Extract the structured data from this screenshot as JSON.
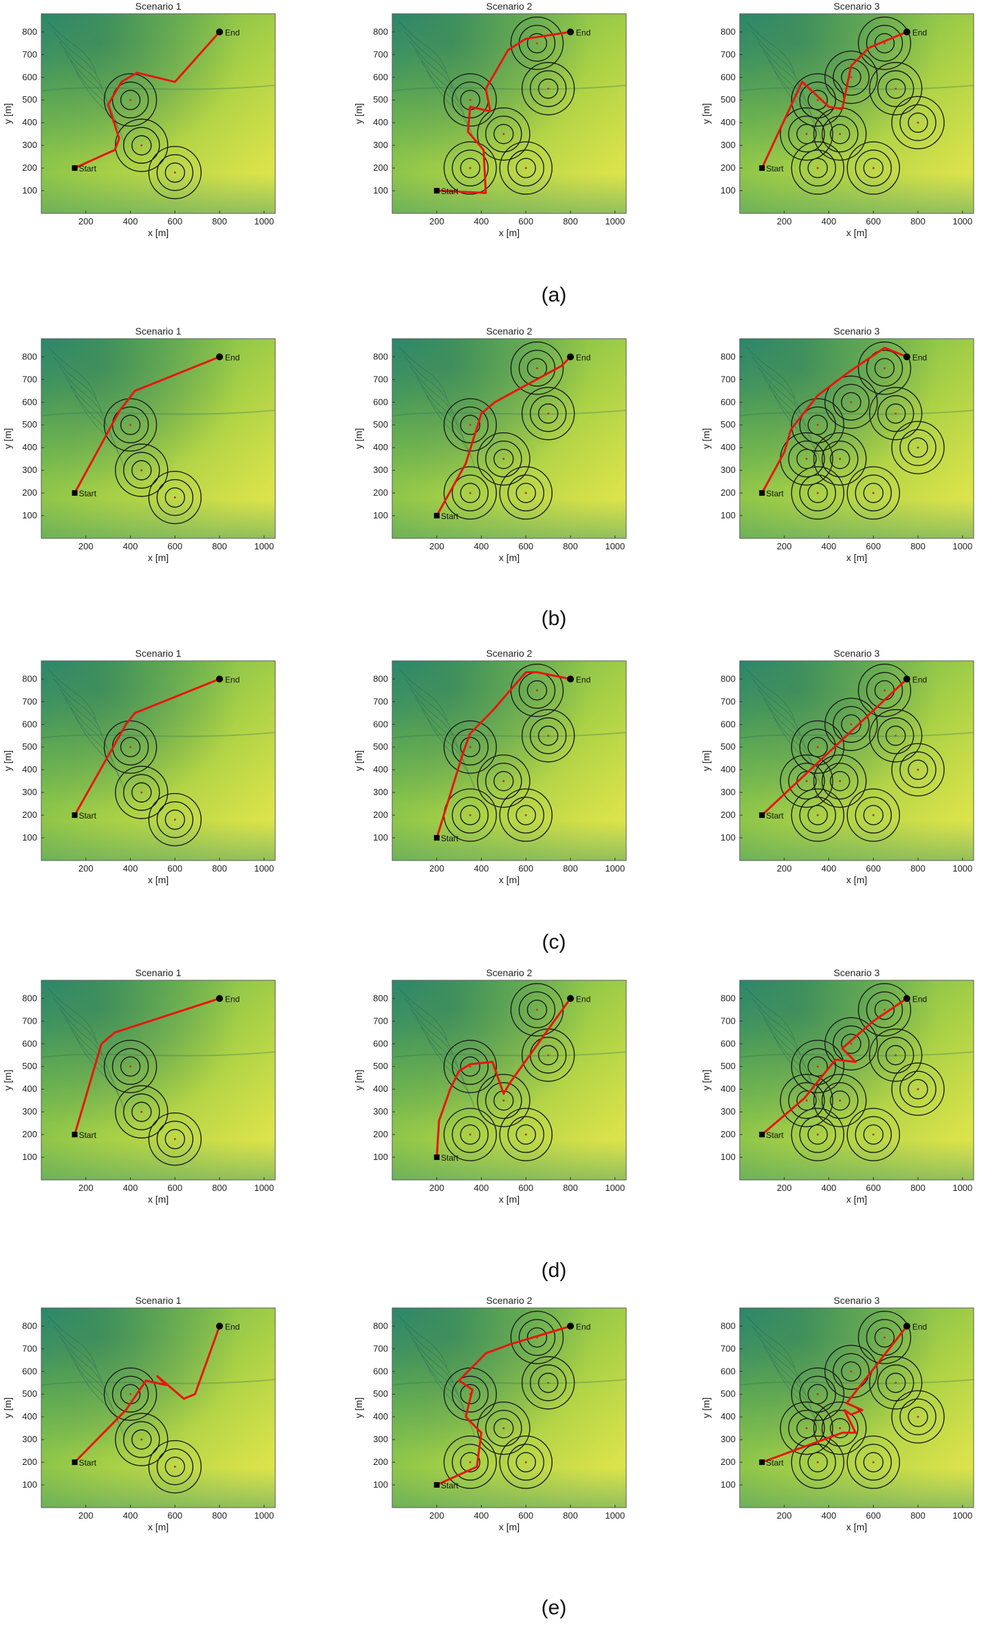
{
  "row_labels": [
    "(a)",
    "(b)",
    "(c)",
    "(d)",
    "(e)"
  ],
  "axes": {
    "xlabel": "x [m]",
    "ylabel": "y [m]",
    "xlim": [
      0,
      1050
    ],
    "ylim": [
      0,
      880
    ],
    "xticks": [
      200,
      400,
      600,
      800,
      1000
    ],
    "yticks": [
      100,
      200,
      300,
      400,
      500,
      600,
      700,
      800
    ]
  },
  "markers": {
    "start_label": "Start",
    "end_label": "End"
  },
  "colors": {
    "path": "#e8160e",
    "threat": "#1a1a1a",
    "marker": "#000000",
    "terrain_low": "#dfe64a",
    "terrain_mid": "#9fcd45",
    "terrain_high": "#3a9a6a"
  },
  "scenarios": [
    {
      "title": "Scenario 1",
      "start": [
        150,
        200
      ],
      "end": [
        800,
        800
      ],
      "threats": [
        [
          400,
          500
        ],
        [
          450,
          300
        ],
        [
          600,
          180
        ]
      ]
    },
    {
      "title": "Scenario 2",
      "start": [
        200,
        100
      ],
      "end": [
        800,
        800
      ],
      "threats": [
        [
          350,
          500
        ],
        [
          500,
          350
        ],
        [
          650,
          750
        ],
        [
          700,
          550
        ],
        [
          350,
          200
        ],
        [
          600,
          200
        ]
      ]
    },
    {
      "title": "Scenario 3",
      "start": [
        100,
        200
      ],
      "end": [
        750,
        800
      ],
      "threats": [
        [
          350,
          500
        ],
        [
          500,
          600
        ],
        [
          650,
          750
        ],
        [
          700,
          550
        ],
        [
          800,
          400
        ],
        [
          300,
          350
        ],
        [
          450,
          350
        ],
        [
          350,
          200
        ],
        [
          600,
          200
        ]
      ]
    }
  ],
  "chart_data": [
    {
      "type": "line",
      "row": "(a)",
      "title": "Scenario 1",
      "xlabel": "x [m]",
      "ylabel": "y [m]",
      "series": [
        {
          "x": [
            150,
            330,
            350,
            300,
            360,
            430,
            600,
            800
          ],
          "y": [
            200,
            280,
            330,
            480,
            580,
            620,
            580,
            800
          ]
        }
      ]
    },
    {
      "type": "line",
      "row": "(a)",
      "title": "Scenario 2",
      "xlabel": "x [m]",
      "ylabel": "y [m]",
      "series": [
        {
          "x": [
            200,
            420,
            410,
            340,
            350,
            440,
            420,
            520,
            600,
            800
          ],
          "y": [
            100,
            90,
            280,
            360,
            470,
            450,
            550,
            720,
            770,
            800
          ]
        }
      ]
    },
    {
      "type": "line",
      "row": "(a)",
      "title": "Scenario 3",
      "xlabel": "x [m]",
      "ylabel": "y [m]",
      "series": [
        {
          "x": [
            100,
            280,
            400,
            460,
            500,
            580,
            750
          ],
          "y": [
            200,
            580,
            470,
            460,
            650,
            730,
            800
          ]
        }
      ]
    },
    {
      "type": "line",
      "row": "(b)",
      "title": "Scenario 1",
      "xlabel": "x [m]",
      "ylabel": "y [m]",
      "series": [
        {
          "x": [
            150,
            350,
            420,
            800
          ],
          "y": [
            200,
            560,
            650,
            800
          ]
        }
      ]
    },
    {
      "type": "line",
      "row": "(b)",
      "title": "Scenario 2",
      "xlabel": "x [m]",
      "ylabel": "y [m]",
      "series": [
        {
          "x": [
            200,
            330,
            400,
            460,
            760,
            800
          ],
          "y": [
            100,
            330,
            550,
            600,
            760,
            800
          ]
        }
      ]
    },
    {
      "type": "line",
      "row": "(b)",
      "title": "Scenario 3",
      "xlabel": "x [m]",
      "ylabel": "y [m]",
      "series": [
        {
          "x": [
            100,
            200,
            230,
            350,
            500,
            650,
            750
          ],
          "y": [
            200,
            380,
            480,
            630,
            740,
            840,
            800
          ]
        }
      ]
    },
    {
      "type": "line",
      "row": "(c)",
      "title": "Scenario 1",
      "xlabel": "x [m]",
      "ylabel": "y [m]",
      "series": [
        {
          "x": [
            150,
            380,
            420,
            800
          ],
          "y": [
            200,
            600,
            650,
            800
          ]
        }
      ]
    },
    {
      "type": "line",
      "row": "(c)",
      "title": "Scenario 2",
      "xlabel": "x [m]",
      "ylabel": "y [m]",
      "series": [
        {
          "x": [
            200,
            320,
            350,
            450,
            600,
            650,
            800
          ],
          "y": [
            100,
            480,
            560,
            660,
            830,
            830,
            800
          ]
        }
      ]
    },
    {
      "type": "line",
      "row": "(c)",
      "title": "Scenario 3",
      "xlabel": "x [m]",
      "ylabel": "y [m]",
      "series": [
        {
          "x": [
            100,
            750
          ],
          "y": [
            200,
            800
          ]
        }
      ]
    },
    {
      "type": "line",
      "row": "(d)",
      "title": "Scenario 1",
      "xlabel": "x [m]",
      "ylabel": "y [m]",
      "series": [
        {
          "x": [
            150,
            270,
            330,
            800
          ],
          "y": [
            200,
            600,
            650,
            800
          ]
        }
      ]
    },
    {
      "type": "line",
      "row": "(d)",
      "title": "Scenario 2",
      "xlabel": "x [m]",
      "ylabel": "y [m]",
      "series": [
        {
          "x": [
            200,
            210,
            260,
            300,
            350,
            450,
            500,
            530,
            800
          ],
          "y": [
            100,
            260,
            400,
            480,
            510,
            520,
            380,
            430,
            800
          ]
        }
      ]
    },
    {
      "type": "line",
      "row": "(d)",
      "title": "Scenario 3",
      "xlabel": "x [m]",
      "ylabel": "y [m]",
      "series": [
        {
          "x": [
            100,
            290,
            430,
            520,
            460,
            600,
            750
          ],
          "y": [
            200,
            360,
            530,
            520,
            580,
            700,
            800
          ]
        }
      ]
    },
    {
      "type": "line",
      "row": "(e)",
      "title": "Scenario 1",
      "xlabel": "x [m]",
      "ylabel": "y [m]",
      "series": [
        {
          "x": [
            150,
            380,
            470,
            560,
            520,
            640,
            690,
            800
          ],
          "y": [
            200,
            430,
            560,
            540,
            580,
            480,
            500,
            800
          ]
        }
      ]
    },
    {
      "type": "line",
      "row": "(e)",
      "title": "Scenario 2",
      "xlabel": "x [m]",
      "ylabel": "y [m]",
      "series": [
        {
          "x": [
            200,
            380,
            400,
            330,
            360,
            300,
            420,
            530,
            800
          ],
          "y": [
            100,
            180,
            330,
            400,
            520,
            560,
            680,
            720,
            800
          ]
        }
      ]
    },
    {
      "type": "line",
      "row": "(e)",
      "title": "Scenario 3",
      "xlabel": "x [m]",
      "ylabel": "y [m]",
      "series": [
        {
          "x": [
            100,
            460,
            520,
            470,
            500,
            550,
            480,
            750
          ],
          "y": [
            200,
            330,
            330,
            430,
            410,
            430,
            460,
            800
          ]
        }
      ]
    }
  ]
}
